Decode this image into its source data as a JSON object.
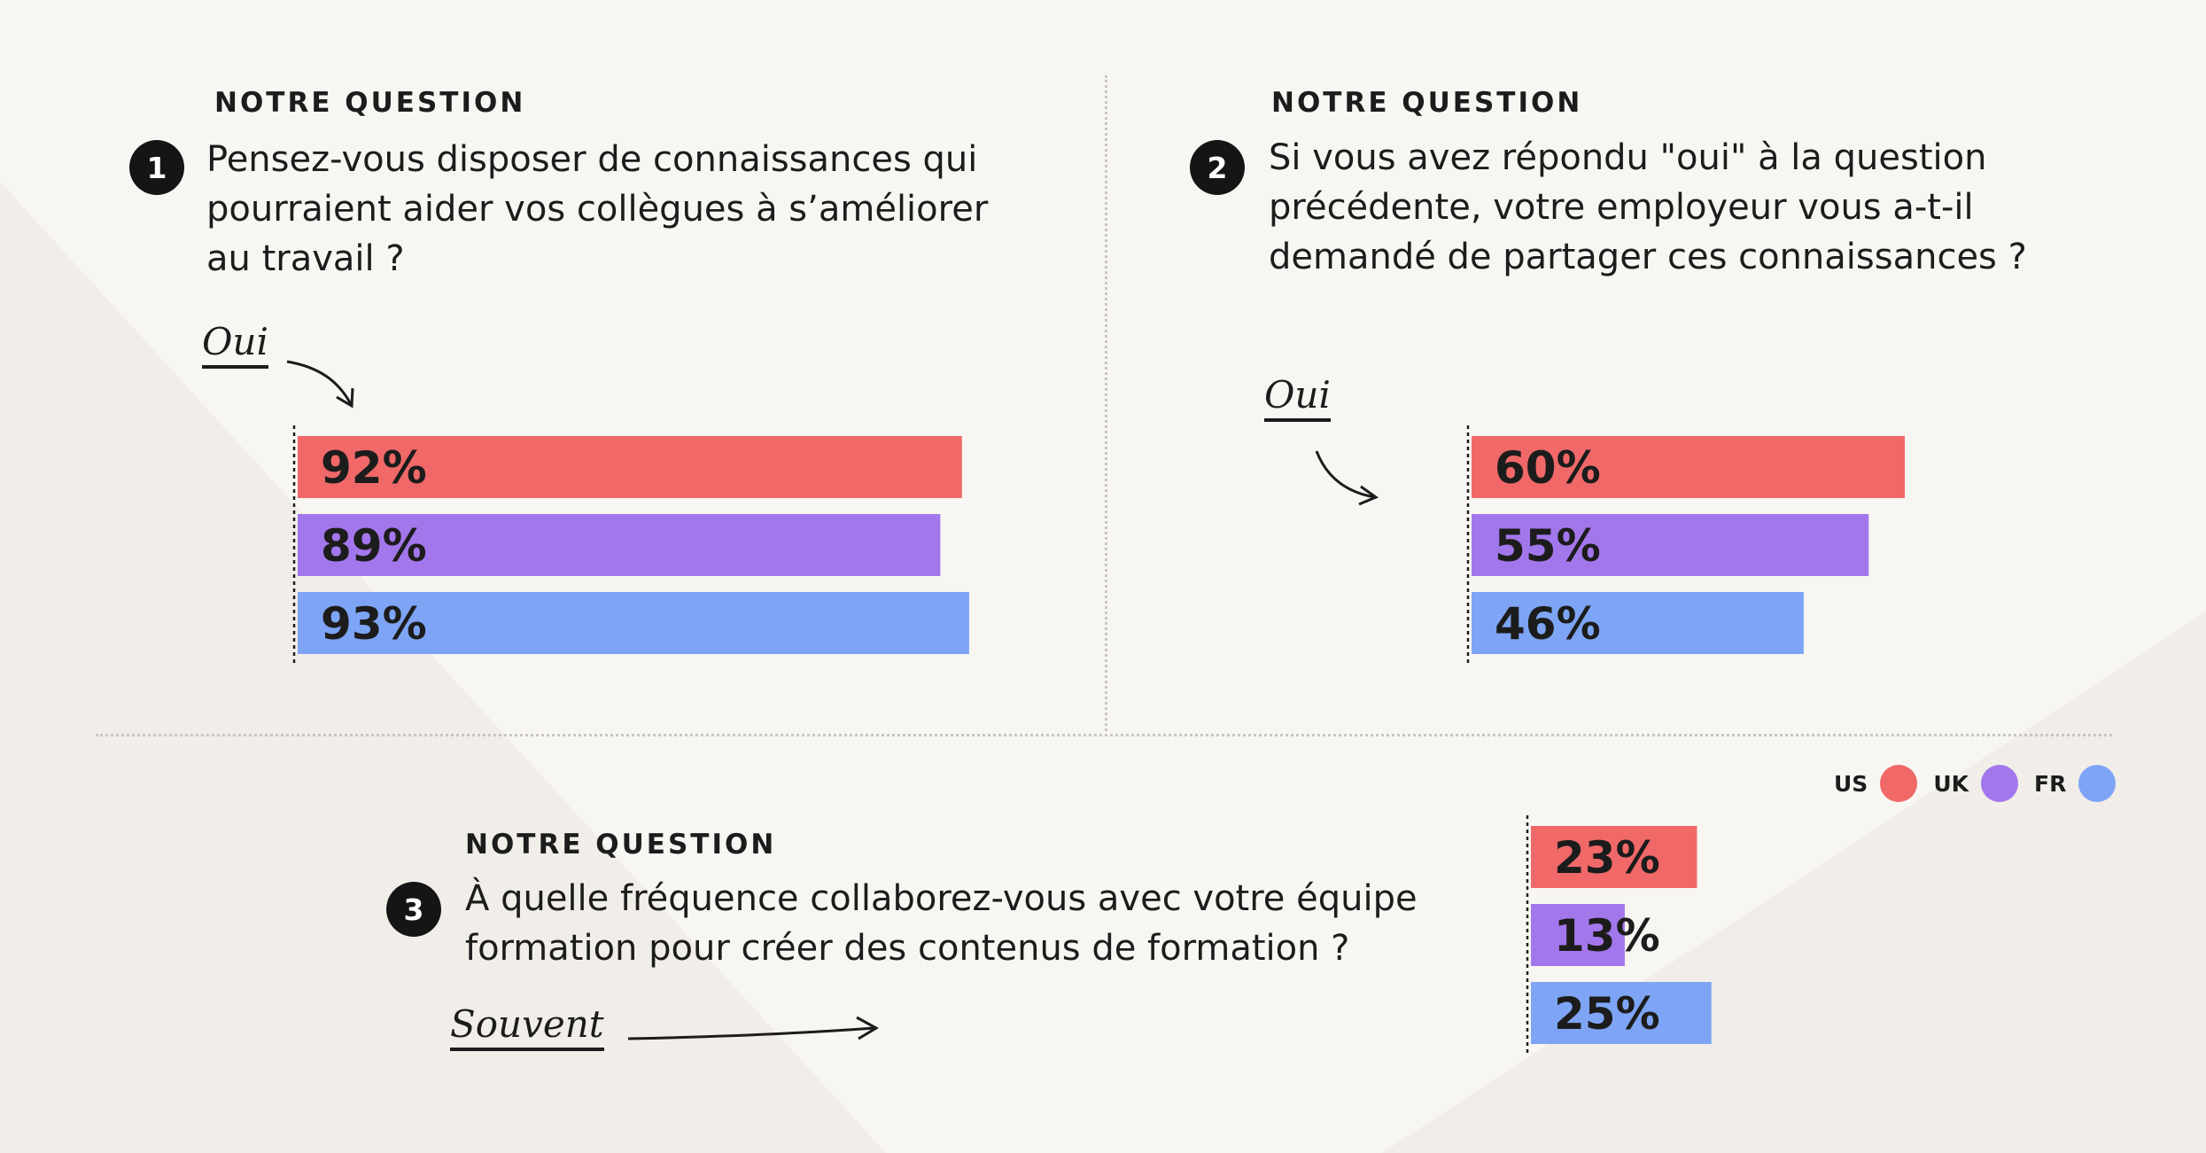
{
  "colors": {
    "US": "#f06868",
    "UK": "#a377ec",
    "FR": "#7ea5f5",
    "background": "#f8f6f2"
  },
  "legend": [
    {
      "label": "US",
      "color": "#f06868"
    },
    {
      "label": "UK",
      "color": "#a377ec"
    },
    {
      "label": "FR",
      "color": "#7ea5f5"
    }
  ],
  "questions": [
    {
      "eyebrow": "NOTRE QUESTION",
      "number": "1",
      "text": "Pensez-vous disposer de connaissances qui\npourraient aider vos collègues à s’améliorer\nau travail ?",
      "answer": "Oui"
    },
    {
      "eyebrow": "NOTRE QUESTION",
      "number": "2",
      "text": "Si vous avez répondu \"oui\" à la question\nprécédente, votre employeur vous a-t-il\ndemandé de partager ces connaissances ?",
      "answer": "Oui"
    },
    {
      "eyebrow": "NOTRE QUESTION",
      "number": "3",
      "text": "À quelle fréquence collaborez-vous avec votre équipe\nformation pour créer des contenus de formation ?",
      "answer": "Souvent"
    }
  ],
  "chart_data": [
    {
      "type": "bar",
      "orientation": "horizontal",
      "categories": [
        "US",
        "UK",
        "FR"
      ],
      "values": [
        92,
        89,
        93
      ],
      "labels": [
        "92%",
        "89%",
        "93%"
      ],
      "unit": "%"
    },
    {
      "type": "bar",
      "orientation": "horizontal",
      "categories": [
        "US",
        "UK",
        "FR"
      ],
      "values": [
        60,
        55,
        46
      ],
      "labels": [
        "60%",
        "55%",
        "46%"
      ],
      "unit": "%"
    },
    {
      "type": "bar",
      "orientation": "horizontal",
      "categories": [
        "US",
        "UK",
        "FR"
      ],
      "values": [
        23,
        13,
        25
      ],
      "labels": [
        "23%",
        "13%",
        "25%"
      ],
      "unit": "%"
    }
  ]
}
